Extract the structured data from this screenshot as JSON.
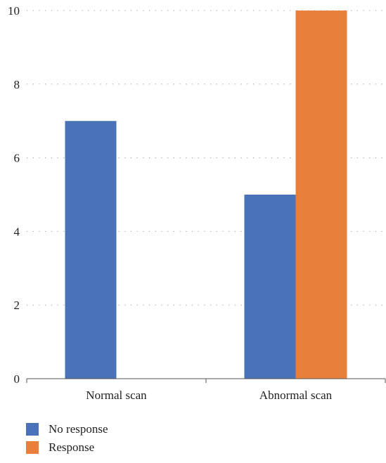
{
  "chart_data": {
    "type": "bar",
    "title": "",
    "xlabel": "",
    "ylabel": "",
    "categories": [
      "Normal scan",
      "Abnormal scan"
    ],
    "series": [
      {
        "name": "No response",
        "values": [
          7,
          5
        ],
        "color": "#4a72b8"
      },
      {
        "name": "Response",
        "values": [
          0,
          10
        ],
        "color": "#e8803b"
      }
    ],
    "ylim": [
      0,
      10
    ],
    "yticks": [
      "0",
      "2",
      "4",
      "6",
      "8",
      "10"
    ],
    "grid": true,
    "grid_style": "dotted",
    "legend_position": "bottom-left"
  }
}
